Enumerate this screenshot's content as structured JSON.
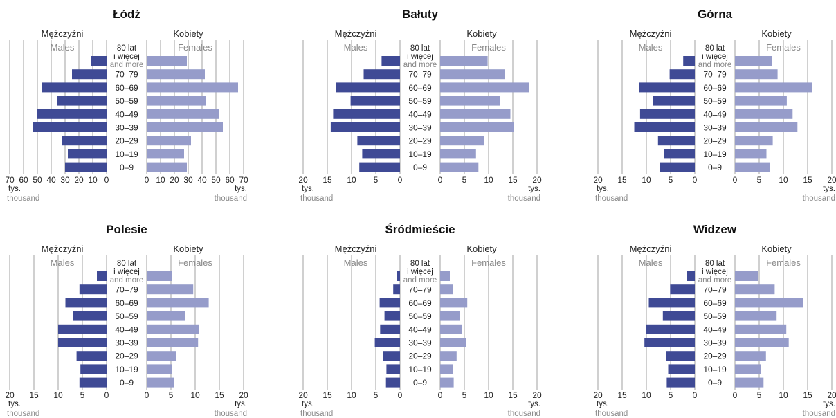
{
  "colors": {
    "male": "#3f4a95",
    "female": "#969cca",
    "grid": "#8a8a8a",
    "axis_text": "#222222",
    "label_gray": "#888888"
  },
  "labels": {
    "men_pl": "Mężczyźni",
    "men_en": "Males",
    "women_pl": "Kobiety",
    "women_en": "Females",
    "unit_pl": "tys.",
    "unit_en": "thousand"
  },
  "age_groups": {
    "top_line1": "80 lat",
    "top_line2": "i więcej",
    "top_line3": "and more",
    "rows": [
      "70–79",
      "60–69",
      "50–59",
      "40–49",
      "30–39",
      "20–29",
      "10–19",
      "0–9"
    ]
  },
  "chart_data": [
    {
      "type": "bar",
      "title": "Łódź",
      "categories": [
        "80 lat i więcej",
        "70–79",
        "60–69",
        "50–59",
        "40–49",
        "30–39",
        "20–29",
        "10–19",
        "0–9"
      ],
      "series": [
        {
          "name": "Mężczyźni",
          "values": [
            11,
            25,
            47,
            36,
            50,
            53,
            32,
            28,
            30
          ]
        },
        {
          "name": "Kobiety",
          "values": [
            29,
            42,
            66,
            43,
            52,
            55,
            32,
            27,
            29
          ]
        }
      ],
      "xlim": [
        0,
        70
      ],
      "male_ticks": [
        "70",
        "60",
        "50",
        "40",
        "30",
        "20",
        "10",
        "0"
      ],
      "female_ticks": [
        "0",
        "10",
        "20",
        "30",
        "40",
        "50",
        "60",
        "70"
      ]
    },
    {
      "type": "bar",
      "title": "Bałuty",
      "categories": [
        "80 lat i więcej",
        "70–79",
        "60–69",
        "50–59",
        "40–49",
        "30–39",
        "20–29",
        "10–19",
        "0–9"
      ],
      "series": [
        {
          "name": "Mężczyźni",
          "values": [
            3.8,
            7.5,
            13.2,
            10.2,
            13.8,
            14.3,
            8.8,
            7.8,
            8.4
          ]
        },
        {
          "name": "Kobiety",
          "values": [
            9.8,
            13.3,
            18.4,
            12.4,
            14.5,
            15.2,
            9.0,
            7.4,
            7.9
          ]
        }
      ],
      "xlim": [
        0,
        20
      ],
      "male_ticks": [
        "20",
        "15",
        "10",
        "5",
        "0"
      ],
      "female_ticks": [
        "0",
        "5",
        "10",
        "15",
        "20"
      ]
    },
    {
      "type": "bar",
      "title": "Górna",
      "categories": [
        "80 lat i więcej",
        "70–79",
        "60–69",
        "50–59",
        "40–49",
        "30–39",
        "20–29",
        "10–19",
        "0–9"
      ],
      "series": [
        {
          "name": "Mężczyźni",
          "values": [
            2.4,
            5.2,
            11.5,
            8.6,
            11.3,
            12.5,
            7.6,
            6.3,
            7.2
          ]
        },
        {
          "name": "Kobiety",
          "values": [
            7.6,
            8.8,
            16.0,
            10.7,
            11.9,
            12.9,
            7.8,
            6.5,
            7.2
          ]
        }
      ],
      "xlim": [
        0,
        20
      ],
      "male_ticks": [
        "20",
        "15",
        "10",
        "5",
        "0"
      ],
      "female_ticks": [
        "0",
        "5",
        "10",
        "15",
        "20"
      ]
    },
    {
      "type": "bar",
      "title": "Polesie",
      "categories": [
        "80 lat i więcej",
        "70–79",
        "60–69",
        "50–59",
        "40–49",
        "30–39",
        "20–29",
        "10–19",
        "0–9"
      ],
      "series": [
        {
          "name": "Mężczyźni",
          "values": [
            2.0,
            5.6,
            8.5,
            6.9,
            10.0,
            10.0,
            6.2,
            5.4,
            5.6
          ]
        },
        {
          "name": "Kobiety",
          "values": [
            5.2,
            9.6,
            12.8,
            8.0,
            10.8,
            10.6,
            6.1,
            5.2,
            5.7
          ]
        }
      ],
      "xlim": [
        0,
        20
      ],
      "male_ticks": [
        "20",
        "15",
        "10",
        "5",
        "0"
      ],
      "female_ticks": [
        "0",
        "5",
        "10",
        "15",
        "20"
      ]
    },
    {
      "type": "bar",
      "title": "Śródmieście",
      "categories": [
        "80 lat i więcej",
        "70–79",
        "60–69",
        "50–59",
        "40–49",
        "30–39",
        "20–29",
        "10–19",
        "0–9"
      ],
      "series": [
        {
          "name": "Mężczyźni",
          "values": [
            0.6,
            1.4,
            4.2,
            3.2,
            4.1,
            5.2,
            3.5,
            2.8,
            2.9
          ]
        },
        {
          "name": "Kobiety",
          "values": [
            2.0,
            2.6,
            5.6,
            4.0,
            4.5,
            5.4,
            3.4,
            2.6,
            2.8
          ]
        }
      ],
      "xlim": [
        0,
        20
      ],
      "male_ticks": [
        "20",
        "15",
        "10",
        "5",
        "0"
      ],
      "female_ticks": [
        "0",
        "5",
        "10",
        "15",
        "20"
      ]
    },
    {
      "type": "bar",
      "title": "Widzew",
      "categories": [
        "80 lat i więcej",
        "70–79",
        "60–69",
        "50–59",
        "40–49",
        "30–39",
        "20–29",
        "10–19",
        "0–9"
      ],
      "series": [
        {
          "name": "Mężczyźni",
          "values": [
            1.6,
            5.1,
            9.5,
            6.6,
            10.1,
            10.4,
            6.0,
            5.5,
            5.8
          ]
        },
        {
          "name": "Kobiety",
          "values": [
            4.8,
            8.2,
            14.0,
            8.6,
            10.6,
            11.1,
            6.4,
            5.4,
            5.9
          ]
        }
      ],
      "xlim": [
        0,
        20
      ],
      "male_ticks": [
        "20",
        "15",
        "10",
        "5",
        "0"
      ],
      "female_ticks": [
        "0",
        "5",
        "10",
        "15",
        "20"
      ]
    }
  ]
}
